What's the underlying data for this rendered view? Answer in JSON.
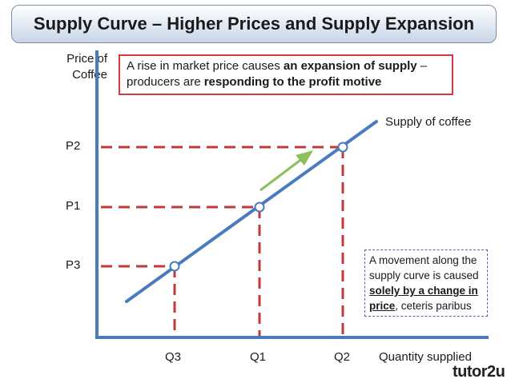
{
  "title": "Supply Curve – Higher Prices and Supply Expansion",
  "y_axis_label_line1": "Price of",
  "y_axis_label_line2": "Coffee",
  "x_axis_label": "Quantity supplied",
  "callout": {
    "part1": "A rise in market price causes ",
    "bold1": "an expansion of supply",
    "part2": " – producers are ",
    "bold2": "responding to the profit motive"
  },
  "supply_label": "Supply of coffee",
  "price_labels": {
    "p2": "P2",
    "p1": "P1",
    "p3": "P3"
  },
  "quantity_labels": {
    "q3": "Q3",
    "q1": "Q1",
    "q2": "Q2"
  },
  "note": {
    "part1": "A movement along the supply curve is caused ",
    "bold": "solely by a change in price",
    "part2": ", ceteris paribus"
  },
  "brand": "tutor2u",
  "colors": {
    "curve": "#4a7bbf",
    "guides": "#c0393b",
    "arrow": "#8dbf5a",
    "callout_border": "#d5383e"
  }
}
